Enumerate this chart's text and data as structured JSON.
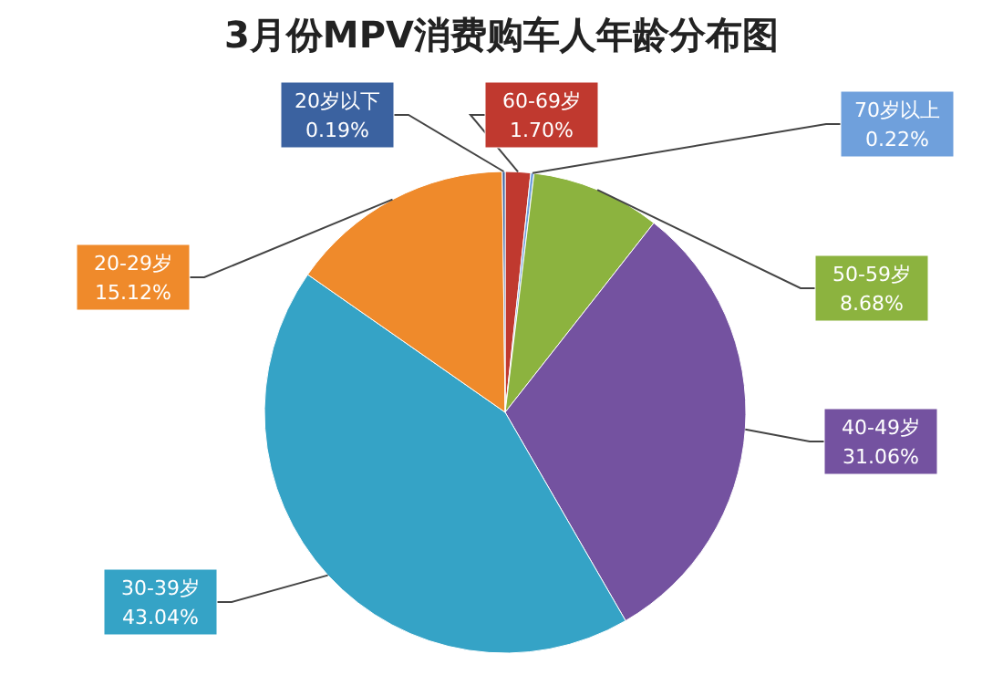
{
  "chart_data": {
    "type": "pie",
    "title": "3月份MPV消费购车人年龄分布图",
    "categories": [
      "60-69岁",
      "70岁以上",
      "50-59岁",
      "40-49岁",
      "30-39岁",
      "20-29岁",
      "20岁以下"
    ],
    "values": [
      1.7,
      0.22,
      8.68,
      31.06,
      43.04,
      15.12,
      0.19
    ],
    "value_labels": [
      "1.70%",
      "0.22%",
      "8.68%",
      "31.06%",
      "43.04%",
      "15.12%",
      "0.19%"
    ],
    "colors": [
      "#c0392f",
      "#6fa0dc",
      "#8cb33f",
      "#7452a0",
      "#35a3c6",
      "#ef8a2b",
      "#3b62a0"
    ],
    "legend": false
  }
}
